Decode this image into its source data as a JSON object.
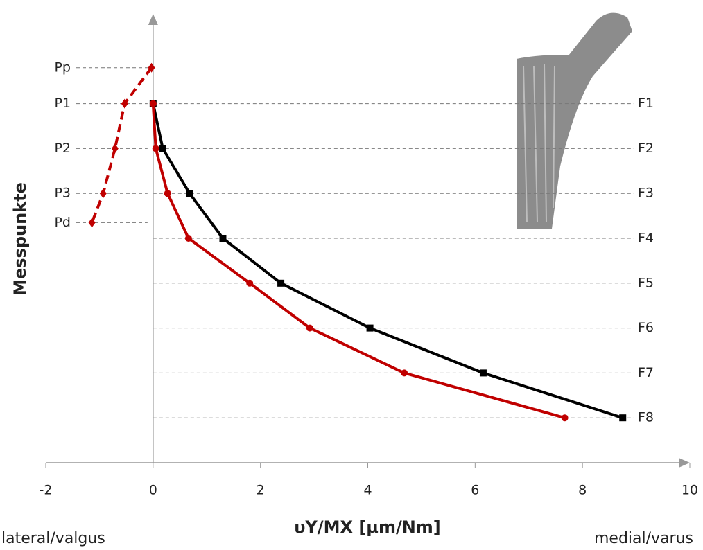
{
  "chart_data": {
    "type": "line",
    "xlabel": "υY/MX [µm/Nm]",
    "ylabel": "Messpunkte",
    "annotations": [
      "lateral/valgus",
      "medial/varus"
    ],
    "xlim": [
      -2,
      10
    ],
    "xticks": [
      -2,
      0,
      2,
      4,
      6,
      8,
      10
    ],
    "ylim": [
      9,
      -1
    ],
    "yticks": [
      {
        "value": 0.2,
        "label": "Pp"
      },
      {
        "value": 1,
        "label": "P1"
      },
      {
        "value": 2,
        "label": "P2"
      },
      {
        "value": 3,
        "label": "P3"
      },
      {
        "value": 3.65,
        "label": "Pd"
      }
    ],
    "y2lim": [
      9,
      -1
    ],
    "y2ticks": [
      {
        "value": 1,
        "label": "F1"
      },
      {
        "value": 2,
        "label": "F2"
      },
      {
        "value": 3,
        "label": "F3"
      },
      {
        "value": 4,
        "label": "F4"
      },
      {
        "value": 5,
        "label": "F5"
      },
      {
        "value": 6,
        "label": "F6"
      },
      {
        "value": 7,
        "label": "F7"
      },
      {
        "value": 8,
        "label": "F8"
      }
    ],
    "grid": true,
    "series": [
      {
        "color": "#000000",
        "marker": "square",
        "dashed": false,
        "axis": "y2",
        "x": [
          0,
          0.18,
          0.68,
          1.3,
          2.38,
          4.04,
          6.15,
          8.75
        ],
        "values": [
          1,
          2,
          3,
          4,
          5,
          6,
          7,
          8
        ]
      },
      {
        "color": "#c00000",
        "marker": "circle",
        "dashed": false,
        "axis": "y2",
        "x": [
          0,
          0.05,
          0.27,
          0.66,
          1.8,
          2.92,
          4.68,
          7.67
        ],
        "values": [
          1,
          2,
          3,
          4,
          5,
          6,
          7,
          8
        ]
      },
      {
        "color": "#c00000",
        "marker": "diamond",
        "dashed": true,
        "x": [
          -0.03,
          -0.53,
          -0.71,
          -0.93,
          -1.14
        ],
        "values": [
          0.2,
          1,
          2,
          3,
          3.65
        ]
      }
    ]
  }
}
